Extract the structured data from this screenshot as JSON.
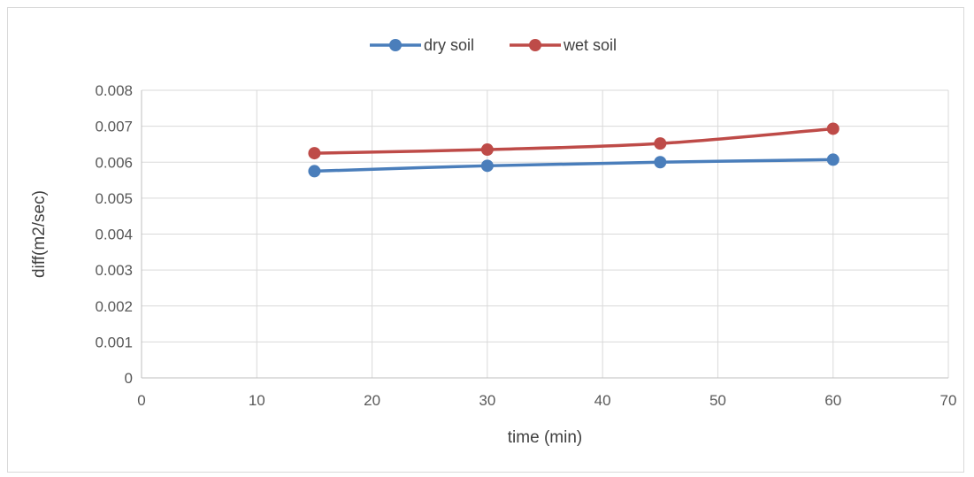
{
  "chart_data": {
    "type": "line",
    "title": "",
    "xlabel": "time (min)",
    "ylabel": "diff(m2/sec)",
    "xlim": [
      0,
      70
    ],
    "ylim": [
      0,
      0.008
    ],
    "x_ticks": [
      "0",
      "10",
      "20",
      "30",
      "40",
      "50",
      "60",
      "70"
    ],
    "y_ticks": [
      "0",
      "0.001",
      "0.002",
      "0.003",
      "0.004",
      "0.005",
      "0.006",
      "0.007",
      "0.008"
    ],
    "grid": true,
    "legend_position": "top",
    "series": [
      {
        "name": "dry soil",
        "color": "#4a7ebb",
        "x": [
          15,
          30,
          45,
          60
        ],
        "y": [
          0.00575,
          0.0059,
          0.006,
          0.00607
        ]
      },
      {
        "name": "wet soil",
        "color": "#be4b48",
        "x": [
          15,
          30,
          45,
          60
        ],
        "y": [
          0.00625,
          0.00635,
          0.00652,
          0.00693
        ]
      }
    ]
  }
}
